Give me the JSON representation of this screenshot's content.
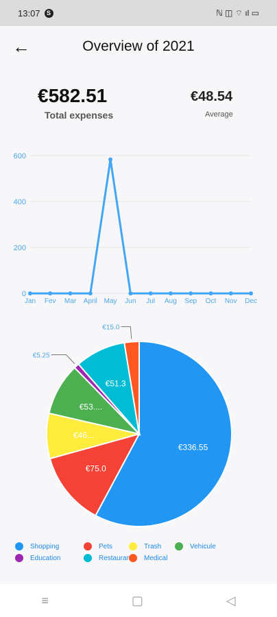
{
  "status": {
    "time": "13:07",
    "notification_badge": "S",
    "icons_text": "ℕ ◫ ⌔ ıl ▭"
  },
  "header": {
    "title": "Overview of 2021",
    "back_icon": "arrow-left-icon"
  },
  "summary": {
    "total": "€582.51",
    "total_label": "Total expenses",
    "average": "€48.54",
    "average_label": "Average"
  },
  "chart_data": [
    {
      "type": "line",
      "categories": [
        "Jan",
        "Fev",
        "Mar",
        "April",
        "May",
        "Jun",
        "Jul",
        "Aug",
        "Sep",
        "Oct",
        "Nov",
        "Dec"
      ],
      "values": [
        0,
        0,
        0,
        0,
        582.51,
        0,
        0,
        0,
        0,
        0,
        0,
        0
      ],
      "ylim": [
        0,
        650
      ],
      "yticks": [
        0,
        200,
        400,
        600
      ],
      "grid": true,
      "color": "#42a5f5"
    },
    {
      "type": "pie",
      "slices": [
        {
          "name": "Shopping",
          "value": 336.55,
          "label": "€336.55",
          "color": "#2196f3"
        },
        {
          "name": "Pets",
          "value": 75.0,
          "label": "€75.0",
          "color": "#f44336"
        },
        {
          "name": "Trash",
          "value": 46.0,
          "label": "€46...",
          "color": "#ffeb3b"
        },
        {
          "name": "Vehicule",
          "value": 53.0,
          "label": "€53....",
          "color": "#4caf50"
        },
        {
          "name": "Education",
          "value": 5.25,
          "label": "€5.25",
          "color": "#9c27b0"
        },
        {
          "name": "Restaurants",
          "value": 51.3,
          "label": "€51.3",
          "color": "#00bcd4"
        },
        {
          "name": "Medical",
          "value": 15.0,
          "label": "€15.0",
          "color": "#ff5722"
        }
      ]
    }
  ],
  "legend": [
    {
      "name": "Shopping",
      "color": "#2196f3"
    },
    {
      "name": "Pets",
      "color": "#f44336"
    },
    {
      "name": "Trash",
      "color": "#ffeb3b"
    },
    {
      "name": "Vehicule",
      "color": "#4caf50"
    },
    {
      "name": "Education",
      "color": "#9c27b0"
    },
    {
      "name": "Restaurants",
      "color": "#00bcd4"
    },
    {
      "name": "Medical",
      "color": "#ff5722"
    }
  ],
  "nav": {
    "menu": "≡",
    "home": "▢",
    "back": "◁"
  }
}
